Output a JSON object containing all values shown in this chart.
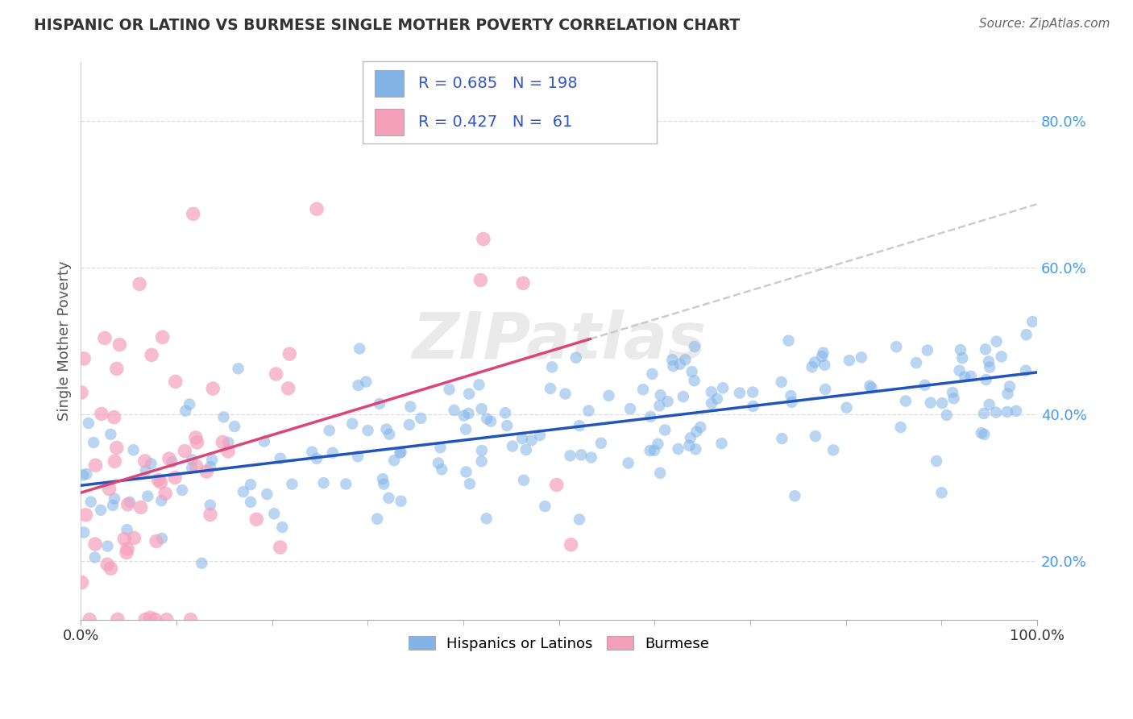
{
  "title": "HISPANIC OR LATINO VS BURMESE SINGLE MOTHER POVERTY CORRELATION CHART",
  "source_text": "Source: ZipAtlas.com",
  "ylabel": "Single Mother Poverty",
  "watermark": "ZIPatlas",
  "legend_blue_r": "0.685",
  "legend_blue_n": "198",
  "legend_pink_r": "0.427",
  "legend_pink_n": "61",
  "legend_blue_label": "Hispanics or Latinos",
  "legend_pink_label": "Burmese",
  "blue_color": "#82b4e8",
  "pink_color": "#f5a0bb",
  "blue_line_color": "#2255bb",
  "pink_line_color": "#dd4477",
  "dash_color": "#cccccc",
  "background_color": "#ffffff",
  "grid_color": "#dddddd",
  "xlim": [
    0,
    1
  ],
  "ylim": [
    0.12,
    0.88
  ],
  "blue_R": 0.685,
  "blue_N": 198,
  "pink_R": 0.427,
  "pink_N": 61,
  "seed_blue": 12,
  "seed_pink": 77,
  "ytick_color": "#4499ee",
  "xtick_color": "#333333",
  "title_color": "#333333",
  "ylabel_color": "#555555"
}
